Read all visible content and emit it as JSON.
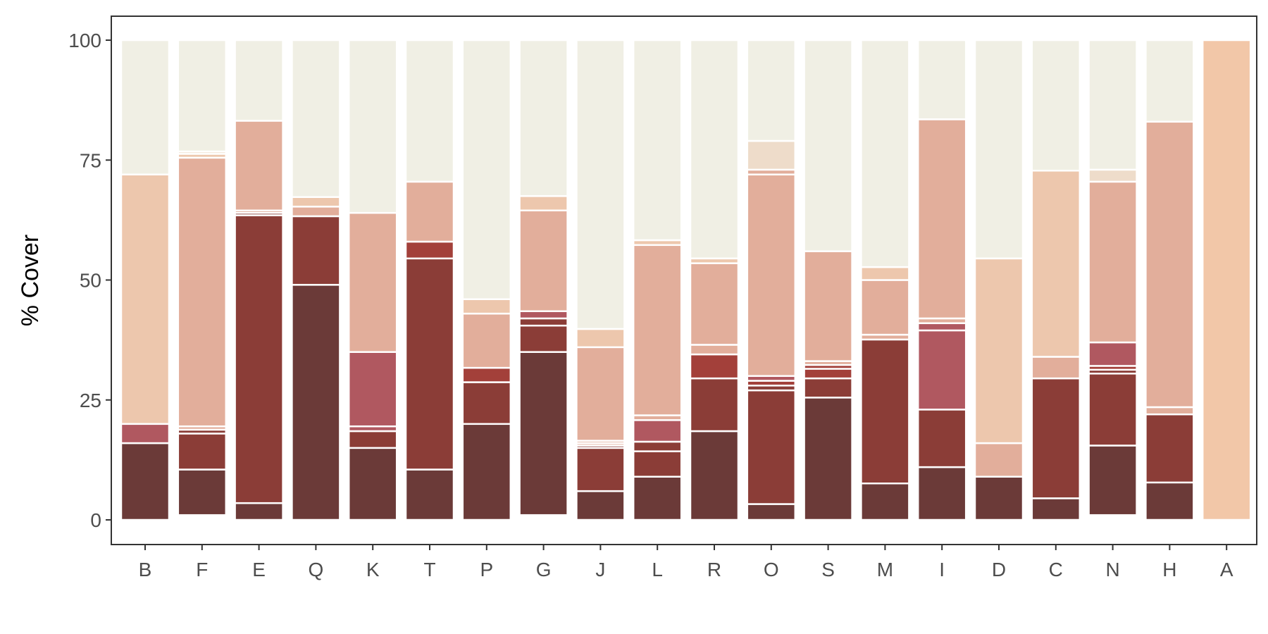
{
  "chart_data": {
    "type": "bar",
    "stacked": true,
    "title": "",
    "xlabel": "",
    "ylabel": "% Cover",
    "ylim": [
      0,
      100
    ],
    "yticks": [
      0,
      25,
      50,
      75,
      100
    ],
    "grid": false,
    "legend": "none",
    "categories": [
      "B",
      "F",
      "E",
      "Q",
      "K",
      "T",
      "P",
      "G",
      "J",
      "L",
      "R",
      "O",
      "S",
      "M",
      "I",
      "D",
      "C",
      "N",
      "H",
      "A"
    ],
    "colors": [
      "#6b3a38",
      "#8b3d37",
      "#b05860",
      "#a3403a",
      "#e2ae9b",
      "#edc7ad",
      "#f2c7a8",
      "#eedcca",
      "#f0efe4"
    ],
    "bars": [
      [
        [
          16,
          "#6b3a38"
        ],
        [
          4,
          "#b05860"
        ],
        [
          52,
          "#edc7ad"
        ],
        [
          28,
          "#f0efe4"
        ]
      ],
      [
        [
          1,
          "#ffffff"
        ],
        [
          9.5,
          "#6b3a38"
        ],
        [
          7.5,
          "#8b3d37"
        ],
        [
          0.8,
          "#8b3d37"
        ],
        [
          0.7,
          "#e2ae9b"
        ],
        [
          56,
          "#e2ae9b"
        ],
        [
          0.8,
          "#edc7ad"
        ],
        [
          0.5,
          "#eedcca"
        ],
        [
          23.2,
          "#f0efe4"
        ]
      ],
      [
        [
          3.5,
          "#6b3a38"
        ],
        [
          60,
          "#8b3d37"
        ],
        [
          0.5,
          "#8b3d37"
        ],
        [
          0.5,
          "#e2ae9b"
        ],
        [
          18.7,
          "#e2ae9b"
        ],
        [
          16.8,
          "#f0efe4"
        ]
      ],
      [
        [
          49,
          "#6b3a38"
        ],
        [
          14.3,
          "#8b3d37"
        ],
        [
          2,
          "#e2ae9b"
        ],
        [
          2,
          "#edc7ad"
        ],
        [
          32.7,
          "#f0efe4"
        ]
      ],
      [
        [
          15,
          "#6b3a38"
        ],
        [
          3.5,
          "#8b3d37"
        ],
        [
          1,
          "#b05860"
        ],
        [
          15.5,
          "#b05860"
        ],
        [
          29,
          "#e2ae9b"
        ],
        [
          36,
          "#f0efe4"
        ]
      ],
      [
        [
          10.5,
          "#6b3a38"
        ],
        [
          44,
          "#8b3d37"
        ],
        [
          3.5,
          "#a3403a"
        ],
        [
          12.5,
          "#e2ae9b"
        ],
        [
          29.5,
          "#f0efe4"
        ]
      ],
      [
        [
          20,
          "#6b3a38"
        ],
        [
          8.7,
          "#8b3d37"
        ],
        [
          3,
          "#a3403a"
        ],
        [
          11.3,
          "#e2ae9b"
        ],
        [
          3,
          "#edc7ad"
        ],
        [
          54,
          "#f0efe4"
        ]
      ],
      [
        [
          1,
          "#ffffff"
        ],
        [
          34,
          "#6b3a38"
        ],
        [
          5.5,
          "#8b3d37"
        ],
        [
          1.5,
          "#8b3d37"
        ],
        [
          1.5,
          "#b05860"
        ],
        [
          21,
          "#e2ae9b"
        ],
        [
          3,
          "#edc7ad"
        ],
        [
          32.5,
          "#f0efe4"
        ]
      ],
      [
        [
          6,
          "#6b3a38"
        ],
        [
          9,
          "#8b3d37"
        ],
        [
          0.5,
          "#8b3d37"
        ],
        [
          0.5,
          "#e2ae9b"
        ],
        [
          0.5,
          "#e2ae9b"
        ],
        [
          19.5,
          "#e2ae9b"
        ],
        [
          3.8,
          "#edc7ad"
        ],
        [
          60.2,
          "#f0efe4"
        ]
      ],
      [
        [
          9,
          "#6b3a38"
        ],
        [
          5.3,
          "#8b3d37"
        ],
        [
          2,
          "#8b3d37"
        ],
        [
          4.5,
          "#b05860"
        ],
        [
          1,
          "#e2ae9b"
        ],
        [
          35.5,
          "#e2ae9b"
        ],
        [
          1,
          "#edc7ad"
        ],
        [
          41.7,
          "#f0efe4"
        ]
      ],
      [
        [
          18.5,
          "#6b3a38"
        ],
        [
          11,
          "#8b3d37"
        ],
        [
          5,
          "#a3403a"
        ],
        [
          2,
          "#e2ae9b"
        ],
        [
          17,
          "#e2ae9b"
        ],
        [
          1,
          "#edc7ad"
        ],
        [
          45.5,
          "#f0efe4"
        ]
      ],
      [
        [
          3.3,
          "#6b3a38"
        ],
        [
          23.7,
          "#8b3d37"
        ],
        [
          1,
          "#8b3d37"
        ],
        [
          1,
          "#a3403a"
        ],
        [
          1,
          "#b05860"
        ],
        [
          42,
          "#e2ae9b"
        ],
        [
          1,
          "#e2ae9b"
        ],
        [
          6,
          "#eedcca"
        ],
        [
          21,
          "#f0efe4"
        ]
      ],
      [
        [
          25.5,
          "#6b3a38"
        ],
        [
          4,
          "#8b3d37"
        ],
        [
          2,
          "#a3403a"
        ],
        [
          0.8,
          "#a3403a"
        ],
        [
          0.8,
          "#e2ae9b"
        ],
        [
          22.9,
          "#e2ae9b"
        ],
        [
          44,
          "#f0efe4"
        ]
      ],
      [
        [
          7.6,
          "#6b3a38"
        ],
        [
          30,
          "#8b3d37"
        ],
        [
          1,
          "#e2ae9b"
        ],
        [
          11.4,
          "#e2ae9b"
        ],
        [
          2.7,
          "#edc7ad"
        ],
        [
          47.3,
          "#f0efe4"
        ]
      ],
      [
        [
          11,
          "#6b3a38"
        ],
        [
          12,
          "#8b3d37"
        ],
        [
          16.5,
          "#b05860"
        ],
        [
          1.5,
          "#b05860"
        ],
        [
          1,
          "#e2ae9b"
        ],
        [
          41.5,
          "#e2ae9b"
        ],
        [
          16.5,
          "#f0efe4"
        ]
      ],
      [
        [
          9,
          "#6b3a38"
        ],
        [
          7,
          "#e2ae9b"
        ],
        [
          38.5,
          "#edc7ad"
        ],
        [
          45.5,
          "#f0efe4"
        ]
      ],
      [
        [
          4.5,
          "#6b3a38"
        ],
        [
          25,
          "#8b3d37"
        ],
        [
          4.5,
          "#e2ae9b"
        ],
        [
          38.8,
          "#edc7ad"
        ],
        [
          27.2,
          "#f0efe4"
        ]
      ],
      [
        [
          1,
          "#ffffff"
        ],
        [
          14.5,
          "#6b3a38"
        ],
        [
          15,
          "#8b3d37"
        ],
        [
          0.8,
          "#8b3d37"
        ],
        [
          0.8,
          "#a3403a"
        ],
        [
          4.9,
          "#b05860"
        ],
        [
          33.5,
          "#e2ae9b"
        ],
        [
          2.5,
          "#eedcca"
        ],
        [
          27,
          "#f0efe4"
        ]
      ],
      [
        [
          7.8,
          "#6b3a38"
        ],
        [
          14.2,
          "#8b3d37"
        ],
        [
          1.5,
          "#e2ae9b"
        ],
        [
          59.5,
          "#e2ae9b"
        ],
        [
          17,
          "#f0efe4"
        ]
      ],
      [
        [
          100,
          "#f2c7a8"
        ]
      ]
    ]
  }
}
